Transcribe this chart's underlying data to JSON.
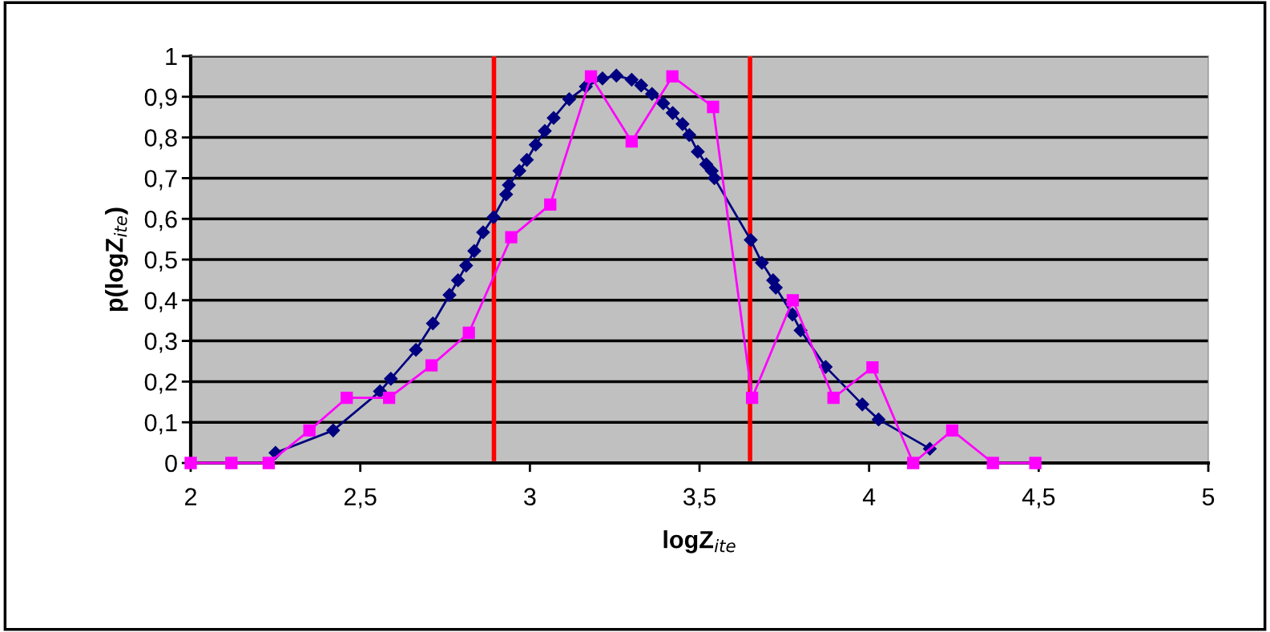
{
  "chart_data": {
    "type": "line",
    "xlabel": "logZ$_{ite}$",
    "ylabel": "p(logZ$_{ite}$)",
    "xlim": [
      2,
      5
    ],
    "xticks": [
      2,
      {
        "value": 2.5,
        "label": "2,5"
      },
      3,
      {
        "value": 3.5,
        "label": "3,5"
      },
      4,
      {
        "value": 4.5,
        "label": "4,5"
      },
      5
    ],
    "ylim": [
      0,
      1
    ],
    "yticks": [
      0,
      {
        "value": 0.1,
        "label": "0,1"
      },
      {
        "value": 0.2,
        "label": "0,2"
      },
      {
        "value": 0.3,
        "label": "0,3"
      },
      {
        "value": 0.4,
        "label": "0,4"
      },
      {
        "value": 0.5,
        "label": "0,5"
      },
      {
        "value": 0.6,
        "label": "0,6"
      },
      {
        "value": 0.7,
        "label": "0,7"
      },
      {
        "value": 0.8,
        "label": "0,8"
      },
      {
        "value": 0.9,
        "label": "0,9"
      },
      1
    ],
    "grid": "y",
    "legend": false,
    "series": [
      {
        "color": "#000080",
        "marker": "diamond",
        "x": [
          2.25,
          2.42,
          2.558,
          2.59,
          2.664,
          2.714,
          2.763,
          2.788,
          2.812,
          2.836,
          2.862,
          2.893,
          2.93,
          2.938,
          2.969,
          2.991,
          3.017,
          3.044,
          3.07,
          3.116,
          3.165,
          3.214,
          3.255,
          3.3,
          3.328,
          3.36,
          3.393,
          3.421,
          3.45,
          3.47,
          3.495,
          3.52,
          3.536,
          3.544,
          3.651,
          3.684,
          3.717,
          3.725,
          3.774,
          3.798,
          3.872,
          3.98,
          4.028,
          4.179
        ],
        "values": [
          0.025,
          0.08,
          0.176,
          0.207,
          0.278,
          0.343,
          0.413,
          0.449,
          0.485,
          0.521,
          0.567,
          0.604,
          0.66,
          0.683,
          0.718,
          0.745,
          0.782,
          0.816,
          0.848,
          0.894,
          0.925,
          0.945,
          0.952,
          0.942,
          0.928,
          0.907,
          0.884,
          0.86,
          0.833,
          0.806,
          0.765,
          0.734,
          0.718,
          0.7,
          0.548,
          0.492,
          0.449,
          0.431,
          0.365,
          0.326,
          0.236,
          0.144,
          0.107,
          0.035
        ]
      },
      {
        "color": "#ff00ff",
        "marker": "square",
        "x": [
          2.0,
          2.12,
          2.23,
          2.35,
          2.46,
          2.585,
          2.71,
          2.82,
          2.945,
          3.06,
          3.18,
          3.3,
          3.42,
          3.54,
          3.655,
          3.775,
          3.895,
          4.01,
          4.13,
          4.245,
          4.365,
          4.49
        ],
        "values": [
          0,
          0,
          0,
          0.08,
          0.16,
          0.16,
          0.24,
          0.32,
          0.555,
          0.635,
          0.95,
          0.79,
          0.95,
          0.875,
          0.16,
          0.4,
          0.16,
          0.235,
          0,
          0.08,
          0,
          0
        ]
      }
    ],
    "ref_lines": [
      {
        "axis": "x",
        "value": 2.894,
        "color": "#ff0000"
      },
      {
        "axis": "x",
        "value": 3.649,
        "color": "#ff0000"
      }
    ]
  }
}
